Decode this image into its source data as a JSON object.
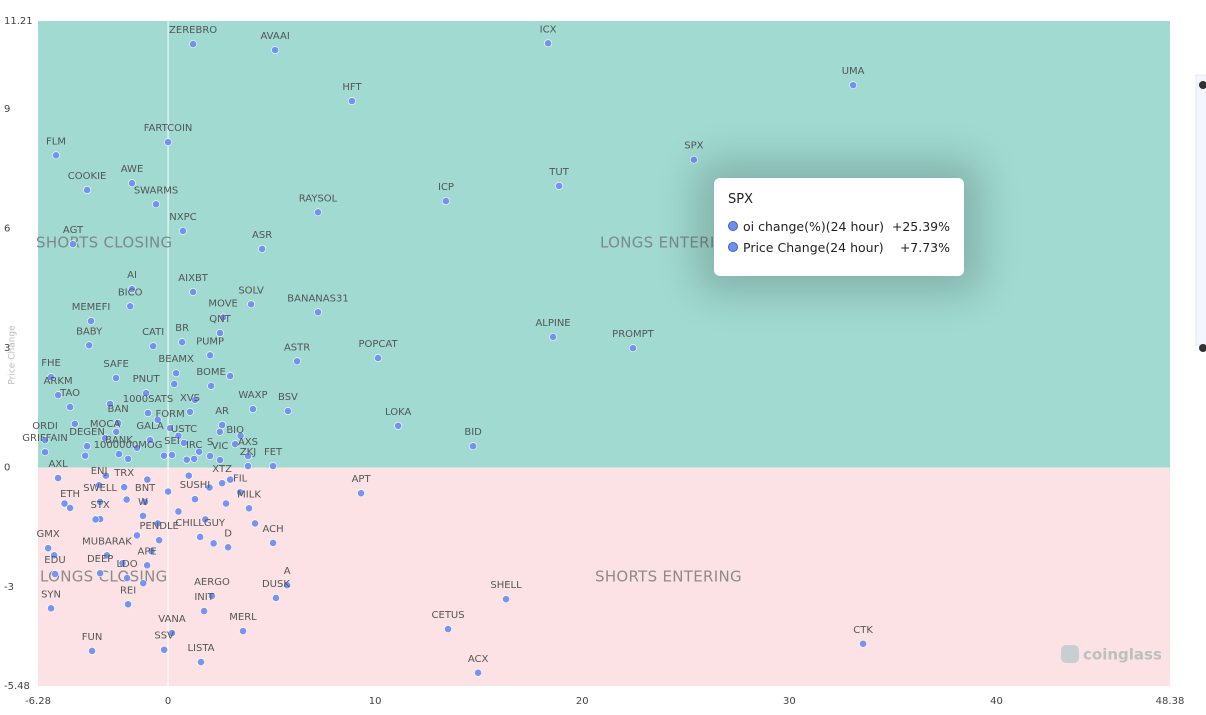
{
  "chart_data": {
    "type": "scatter",
    "y_label": "Price Change",
    "xlim": [
      -6.28,
      48.38
    ],
    "ylim": [
      -5.48,
      11.21
    ],
    "xticks": [
      -6.28,
      0,
      10,
      20,
      30,
      40,
      48.38
    ],
    "yticks": [
      -5.48,
      -3,
      0,
      3,
      6,
      9,
      11.21
    ],
    "color": "#6f8ff0",
    "positive_color": "#a0dad0",
    "negative_color": "#fce2e4",
    "quadrants": {
      "top_left": "SHORTS CLOSING",
      "top_right": "LONGS ENTERING",
      "bottom_left": "LONGS CLOSING",
      "bottom_right": "SHORTS ENTERING"
    },
    "tooltip": {
      "title": "SPX",
      "rows": [
        {
          "label": "oi change(%)(24 hour)",
          "text": "+25.39%"
        },
        {
          "label": "Price Change(24 hour)",
          "text": "+7.73%"
        }
      ]
    },
    "watermark": "coinglass",
    "labels": [
      "ZEREBRO",
      "AVAAI",
      "ICX",
      "HFT",
      "UMA",
      "FARTCOIN",
      "FLM",
      "SPX",
      "AWE",
      "COOKIE",
      "TUT",
      "ICP",
      "SWARMS",
      "RAYSOL",
      "NXPC",
      "AGT",
      "ASR",
      "AI",
      "AIXBT",
      "BICO",
      "MOVE",
      "SOLV",
      "BANANAS31",
      "MEMEFI",
      "QNT",
      "CATI",
      "BR",
      "ALPINE",
      "BABY",
      "PUMP",
      "ASTR",
      "POPCAT",
      "PROMPT",
      "FHE",
      "SAFE",
      "BEAMX",
      "BOME",
      "PNUT",
      "ARKM",
      "WAXP",
      "BSV",
      "TAO",
      "1000SATS",
      "XVS",
      "BAN",
      "AR",
      "LOKA",
      "FORM",
      "MOCA",
      "GALA",
      "ORDI",
      "BIO",
      "USTC",
      "DEGEN",
      "BID",
      "BANK",
      "GRIFFAIN",
      "S",
      "SEI",
      "AXS",
      "1000000MOG",
      "VIC",
      "IRC",
      "ZKJ",
      "FET",
      "AXL",
      "APT",
      "XTZ",
      "ENJ",
      "TRX",
      "ETH",
      "FIL",
      "SWELL",
      "BNT",
      "SUSHI",
      "MILK",
      "STX",
      "W",
      "ACH",
      "GMX",
      "CHILLGUY",
      "MUBARAK",
      "PENDLE",
      "D",
      "APE",
      "DEEP",
      "EDU",
      "LDO",
      "A",
      "AERGO",
      "SYN",
      "REI",
      "DUSK",
      "SHELL",
      "INIT",
      "CETUS",
      "MERL",
      "VANA",
      "SSV",
      "FUN",
      "CTK",
      "LISTA",
      "ACX",
      null,
      null,
      null,
      null,
      null,
      null,
      null,
      null,
      null,
      null,
      null,
      null,
      null,
      null,
      null,
      null,
      null,
      null,
      null,
      null,
      null,
      null,
      null,
      null,
      null,
      null,
      null,
      null,
      null,
      null,
      null,
      null,
      null,
      null,
      null
    ],
    "x": [
      1.21,
      5.17,
      18.35,
      8.88,
      33.08,
      0,
      -5.41,
      25.39,
      -1.74,
      -3.91,
      18.88,
      13.42,
      -0.58,
      7.24,
      0.72,
      -4.59,
      4.54,
      -1.74,
      1.21,
      -1.83,
      2.66,
      4.01,
      7.24,
      -3.72,
      2.51,
      -0.72,
      0.68,
      18.59,
      -3.81,
      2.03,
      6.23,
      10.14,
      22.45,
      -5.65,
      -2.51,
      0.39,
      2.08,
      -1.06,
      -5.31,
      4.1,
      5.79,
      -4.73,
      -0.97,
      1.06,
      -2.41,
      2.61,
      11.11,
      0.1,
      -3.04,
      -0.87,
      -5.94,
      3.24,
      0.77,
      -3.91,
      14.73,
      -2.37,
      -5.94,
      2.03,
      0.19,
      3.86,
      -1.93,
      2.51,
      1.26,
      3.86,
      5.07,
      -5.31,
      9.32,
      2.61,
      -3.33,
      -2.12,
      -4.73,
      3.48,
      -3.28,
      -1.11,
      1.3,
      3.91,
      -3.28,
      -1.21,
      5.07,
      -5.79,
      1.55,
      -2.95,
      -0.43,
      2.9,
      -1.01,
      -3.28,
      -5.46,
      -1.98,
      5.75,
      2.12,
      -5.65,
      -1.93,
      5.21,
      16.32,
      1.74,
      13.52,
      3.62,
      0.19,
      -0.19,
      -3.67,
      33.56,
      1.59,
      14.97,
      -2.5,
      -1.5,
      -0.5,
      0.5,
      1.5,
      2.5,
      -1,
      0,
      1,
      2,
      -2,
      -3,
      3,
      0.5,
      -0.5,
      1.8,
      -1.5,
      2.8,
      -4,
      -4.5,
      3.5,
      -2.8,
      0.3,
      1.3,
      -0.2,
      0.9,
      -3.5,
      2.2,
      -2.2,
      4.2,
      -5,
      -5.5,
      -1.2,
      3,
      -0.8
    ],
    "y": [
      10.63,
      10.48,
      10.65,
      9.2,
      9.6,
      8.17,
      7.84,
      7.73,
      7.14,
      6.97,
      7.07,
      6.69,
      6.61,
      6.41,
      5.94,
      5.61,
      5.49,
      4.48,
      4.41,
      4.05,
      3.77,
      4.1,
      3.9,
      3.68,
      3.38,
      3.05,
      3.15,
      3.28,
      3.07,
      2.82,
      2.67,
      2.75,
      3,
      2.27,
      2.25,
      2.37,
      2.05,
      1.87,
      1.82,
      1.47,
      1.42,
      1.52,
      1.37,
      1.4,
      1.12,
      1.07,
      1.05,
      0.99,
      0.74,
      0.69,
      0.69,
      0.59,
      0.62,
      0.54,
      0.54,
      0.34,
      0.39,
      0.29,
      0.32,
      0.29,
      0.22,
      0.19,
      0.22,
      0.04,
      0.04,
      -0.26,
      -0.64,
      -0.39,
      -0.44,
      -0.49,
      -1.01,
      -0.62,
      -0.86,
      -0.86,
      -0.79,
      -1.02,
      -1.29,
      -1.21,
      -1.89,
      -2.02,
      -1.74,
      -2.2,
      -1.82,
      -2,
      -2.45,
      -2.65,
      -2.67,
      -2.77,
      -2.95,
      -3.22,
      -3.53,
      -3.43,
      -3.27,
      -3.3,
      -3.6,
      -4.05,
      -4.1,
      -4.15,
      -4.57,
      -4.6,
      -4.42,
      -4.88,
      -5.15,
      0.9,
      0.5,
      1.2,
      0.8,
      0.4,
      0.9,
      -0.3,
      -0.6,
      -0.2,
      -0.5,
      -0.8,
      -0.2,
      -0.3,
      -1.1,
      -1.4,
      -1.3,
      -1.7,
      -0.9,
      0.3,
      1.1,
      0.8,
      1.6,
      2.1,
      1.7,
      0.3,
      0.2,
      -1.3,
      -1.9,
      -2.4,
      -1.4,
      -0.9,
      -2.2,
      -2.9,
      2.3,
      -2.1
    ]
  }
}
